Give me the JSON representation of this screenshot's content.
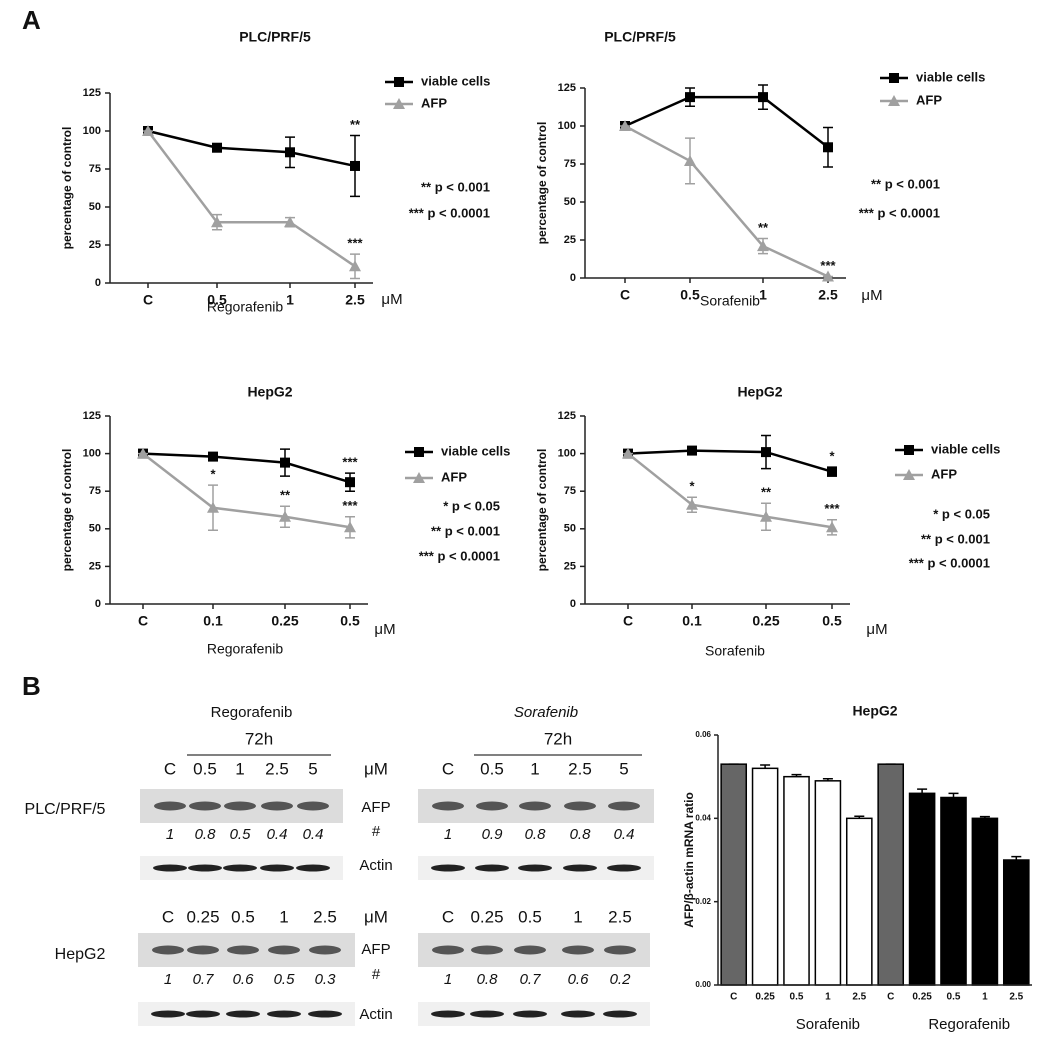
{
  "panel_labels": [
    "A",
    "B"
  ],
  "chart_data": [
    {
      "type": "line",
      "title": "PLC/PRF/5",
      "x_label": "Regorafenib",
      "x_unit": "μM",
      "y_label": "percentage of control",
      "categories": [
        "C",
        "0.5",
        "1",
        "2.5"
      ],
      "ylim": [
        0,
        125
      ],
      "yticks": [
        0,
        25,
        50,
        75,
        100,
        125
      ],
      "series": [
        {
          "name": "viable cells",
          "color": "#000000",
          "marker": "square",
          "values": [
            100,
            89,
            86,
            77
          ],
          "errors": [
            0,
            2,
            10,
            20
          ],
          "annotations": [
            null,
            null,
            null,
            "**"
          ]
        },
        {
          "name": "AFP",
          "color": "#a0a0a0",
          "marker": "triangle",
          "values": [
            100,
            40,
            40,
            11
          ],
          "errors": [
            0,
            5,
            3,
            8
          ],
          "annotations": [
            null,
            null,
            null,
            "***"
          ]
        }
      ],
      "notes": [
        "** p < 0.001",
        "*** p < 0.0001"
      ]
    },
    {
      "type": "line",
      "title": "PLC/PRF/5",
      "x_label": "Sorafenib",
      "x_unit": "μM",
      "y_label": "percentage of control",
      "categories": [
        "C",
        "0.5",
        "1",
        "2.5"
      ],
      "ylim": [
        0,
        125
      ],
      "yticks": [
        0,
        25,
        50,
        75,
        100,
        125
      ],
      "series": [
        {
          "name": "viable cells",
          "color": "#000000",
          "marker": "square",
          "values": [
            100,
            119,
            119,
            86
          ],
          "errors": [
            0,
            6,
            8,
            13
          ],
          "annotations": [
            null,
            null,
            null,
            null
          ]
        },
        {
          "name": "AFP",
          "color": "#a0a0a0",
          "marker": "triangle",
          "values": [
            100,
            77,
            21,
            1
          ],
          "errors": [
            0,
            15,
            5,
            0
          ],
          "annotations": [
            null,
            null,
            "**",
            "***"
          ]
        }
      ],
      "notes": [
        "** p < 0.001",
        "*** p < 0.0001"
      ]
    },
    {
      "type": "line",
      "title": "HepG2",
      "x_label": "Regorafenib",
      "x_unit": "μM",
      "y_label": "percentage of control",
      "categories": [
        "C",
        "0.1",
        "0.25",
        "0.5"
      ],
      "ylim": [
        0,
        125
      ],
      "yticks": [
        0,
        25,
        50,
        75,
        100,
        125
      ],
      "series": [
        {
          "name": "viable cells",
          "color": "#000000",
          "marker": "square",
          "values": [
            100,
            98,
            94,
            81
          ],
          "errors": [
            0,
            1,
            9,
            6
          ],
          "annotations": [
            null,
            null,
            null,
            "***"
          ]
        },
        {
          "name": "AFP",
          "color": "#a0a0a0",
          "marker": "triangle",
          "values": [
            100,
            64,
            58,
            51
          ],
          "errors": [
            0,
            15,
            7,
            7
          ],
          "annotations": [
            null,
            "*",
            "**",
            "***"
          ]
        }
      ],
      "notes": [
        "* p < 0.05",
        "** p < 0.001",
        "*** p < 0.0001"
      ]
    },
    {
      "type": "line",
      "title": "HepG2",
      "x_label": "Sorafenib",
      "x_unit": "μM",
      "y_label": "percentage of control",
      "categories": [
        "C",
        "0.1",
        "0.25",
        "0.5"
      ],
      "ylim": [
        0,
        125
      ],
      "yticks": [
        0,
        25,
        50,
        75,
        100,
        125
      ],
      "series": [
        {
          "name": "viable cells",
          "color": "#000000",
          "marker": "square",
          "values": [
            100,
            102,
            101,
            88
          ],
          "errors": [
            0,
            1,
            11,
            3
          ],
          "annotations": [
            null,
            null,
            null,
            "*"
          ]
        },
        {
          "name": "AFP",
          "color": "#a0a0a0",
          "marker": "triangle",
          "values": [
            100,
            66,
            58,
            51
          ],
          "errors": [
            0,
            5,
            9,
            5
          ],
          "annotations": [
            null,
            "*",
            "**",
            "***"
          ]
        }
      ],
      "notes": [
        "* p < 0.05",
        "** p < 0.001",
        "*** p < 0.0001"
      ]
    },
    {
      "type": "bar",
      "title": "HepG2",
      "y_label": "AFP/β-actin mRNA ratio",
      "categories": [
        "C",
        "0.25",
        "0.5",
        "1",
        "2.5",
        "C",
        "0.25",
        "0.5",
        "1",
        "2.5"
      ],
      "values": [
        0.053,
        0.052,
        0.05,
        0.049,
        0.04,
        0.053,
        0.046,
        0.045,
        0.04,
        0.03
      ],
      "errors": [
        0,
        0.0008,
        0.0005,
        0.0005,
        0.0005,
        0,
        0.001,
        0.001,
        0.0004,
        0.0008
      ],
      "colors": [
        "#666666",
        "#ffffff",
        "#ffffff",
        "#ffffff",
        "#ffffff",
        "#666666",
        "#000000",
        "#000000",
        "#000000",
        "#000000"
      ],
      "groups": [
        "Sorafenib",
        "Regorafenib"
      ],
      "ylim": [
        0,
        0.06
      ],
      "yticks": [
        {
          "value": 0,
          "label": "0.00"
        },
        {
          "value": 0.02,
          "label": "0.02"
        },
        {
          "value": 0.04,
          "label": "0.04"
        },
        {
          "value": 0.06,
          "label": "0.06"
        }
      ]
    }
  ],
  "blots": [
    {
      "cell_line": "PLC/PRF/5",
      "unit": "μM",
      "band_labels": [
        "AFP",
        "#",
        "Actin"
      ],
      "panels": [
        {
          "title": "Regorafenib",
          "time": "72h",
          "concentrations": [
            "C",
            "0.5",
            "1",
            "2.5",
            "5"
          ],
          "quantification": [
            1,
            0.8,
            0.5,
            0.4,
            0.4
          ]
        },
        {
          "title": "Sorafenib",
          "time": "72h",
          "concentrations": [
            "C",
            "0.5",
            "1",
            "2.5",
            "5"
          ],
          "quantification": [
            1,
            0.9,
            0.8,
            0.8,
            0.4
          ]
        }
      ]
    },
    {
      "cell_line": "HepG2",
      "unit": "μM",
      "band_labels": [
        "AFP",
        "#",
        "Actin"
      ],
      "panels": [
        {
          "concentrations": [
            "C",
            "0.25",
            "0.5",
            "1",
            "2.5"
          ],
          "quantification": [
            1,
            0.7,
            0.6,
            0.5,
            0.3
          ]
        },
        {
          "concentrations": [
            "C",
            "0.25",
            "0.5",
            "1",
            "2.5"
          ],
          "quantification": [
            1,
            0.8,
            0.7,
            0.6,
            0.2
          ]
        }
      ]
    }
  ]
}
